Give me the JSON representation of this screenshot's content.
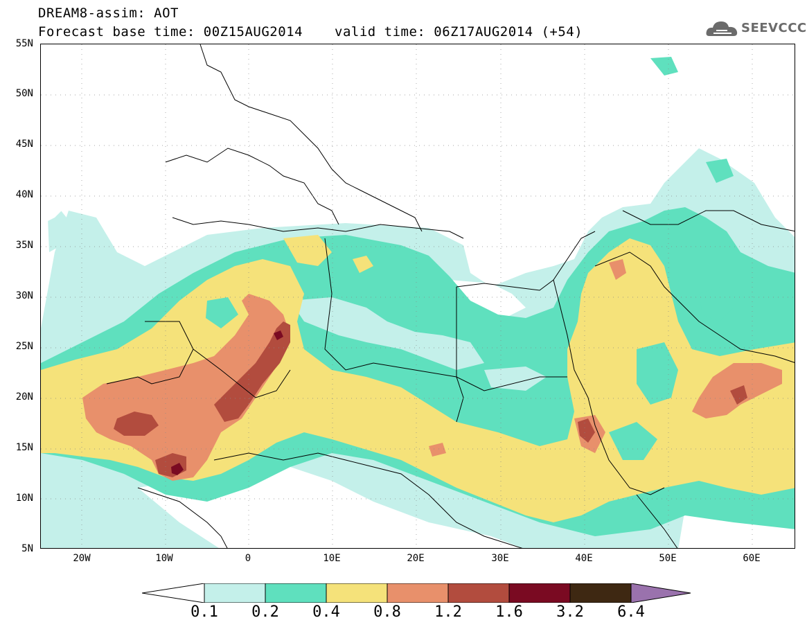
{
  "header": {
    "title": "DREAM8-assim: AOT",
    "forecast": "Forecast base time: 00Z15AUG2014",
    "valid": "valid time: 06Z17AUG2014 (+54)"
  },
  "logo": {
    "text": "SEEVCCC",
    "icon": "cloud-icon"
  },
  "axes": {
    "lat_labels": [
      "55N",
      "50N",
      "45N",
      "40N",
      "35N",
      "30N",
      "25N",
      "20N",
      "15N",
      "10N",
      "5N"
    ],
    "lon_labels": [
      "20W",
      "10W",
      "0",
      "10E",
      "20E",
      "30E",
      "40E",
      "50E",
      "60E"
    ]
  },
  "colorbar": {
    "labels": [
      "0.1",
      "0.2",
      "0.4",
      "0.8",
      "1.2",
      "1.6",
      "3.2",
      "6.4"
    ],
    "colors": [
      "#c4f0ea",
      "#5fe0be",
      "#f5e27a",
      "#e8906b",
      "#b24c3e",
      "#7a0a22",
      "#3e2812",
      "#9a72ad"
    ]
  },
  "colors": {
    "c01": "#c4f0ea",
    "c02": "#5fe0be",
    "c04": "#f5e27a",
    "c08": "#e8906b",
    "c12": "#b24c3e",
    "c16": "#7a0a22"
  }
}
